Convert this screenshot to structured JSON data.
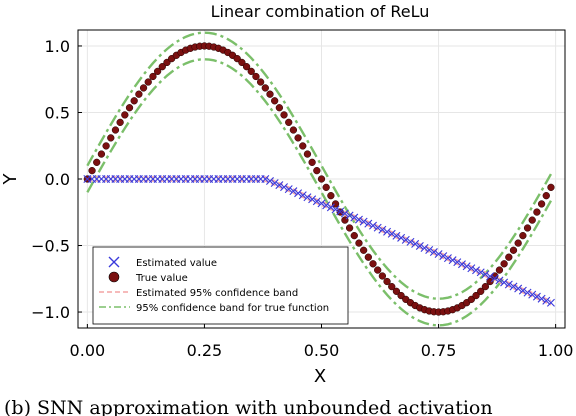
{
  "chart_data": {
    "type": "scatter",
    "title": "Linear combination of ReLu",
    "xlabel": "X",
    "ylabel": "Y",
    "xlim": [
      -0.02,
      1.02
    ],
    "ylim": [
      -1.12,
      1.12
    ],
    "x_ticks": [
      "0.00",
      "0.25",
      "0.50",
      "0.75",
      "1.00"
    ],
    "x_tick_values": [
      0.0,
      0.25,
      0.5,
      0.75,
      1.0
    ],
    "y_ticks": [
      "1.0",
      "0.5",
      "0.0",
      "−0.5",
      "−1.0"
    ],
    "y_tick_values": [
      1.0,
      0.5,
      0.0,
      -0.5,
      -1.0
    ],
    "grid": true,
    "legend_position": "bottom-left",
    "x_sampling": {
      "start": 0.0,
      "end": 0.99,
      "step": 0.01
    },
    "series": [
      {
        "name": "Estimated value",
        "marker": "x",
        "color": "#3a3adb",
        "definition": "y = 0 for x <= 0.38, then y = -(x - 0.38) * 1.525"
      },
      {
        "name": "True value",
        "marker": "circle",
        "color": "#7a1010",
        "definition": "y = sin(2*pi*x)"
      },
      {
        "name": "Estimated 95% confidence band",
        "line_style": "dashed",
        "color": "#f4a3a3",
        "band_half_width": 0.015
      },
      {
        "name": "95% confidence band for true function",
        "line_style": "dashdot",
        "color": "#7bbf6a",
        "band_half_width": 0.1
      }
    ]
  },
  "caption": "(b) SNN approximation with unbounded activation"
}
